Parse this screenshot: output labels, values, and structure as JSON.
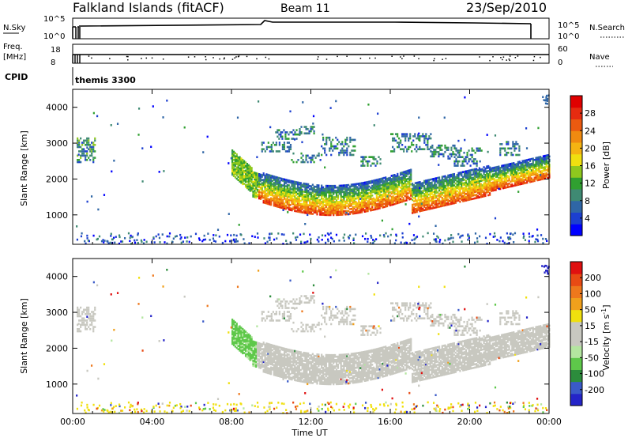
{
  "header": {
    "station": "Falkland Islands (fitACF)",
    "beam": "Beam 11",
    "date": "23/Sep/2010"
  },
  "strip_panels": {
    "nsky": {
      "left_label": "N.Sky",
      "left_ticks": [
        "10^5",
        "10^0"
      ],
      "right_ticks": [
        "10^5",
        "10^0"
      ],
      "right_label": "N.Search"
    },
    "freq": {
      "left_label_1": "Freq.",
      "left_label_2": "[MHz]",
      "left_ticks": [
        "18",
        "8"
      ],
      "right_ticks": [
        "60",
        "0"
      ],
      "right_label": "Nave"
    },
    "cpid": {
      "label": "CPID",
      "value": "themis 3300"
    }
  },
  "x_axis": {
    "title": "Time UT",
    "ticks": [
      "00:00",
      "04:00",
      "08:00",
      "12:00",
      "16:00",
      "20:00",
      "00:00"
    ]
  },
  "chart_data": [
    {
      "type": "heatmap",
      "variable": "Power",
      "ylabel": "Slant Range [km]",
      "y_ticks": [
        1000,
        2000,
        3000,
        4000
      ],
      "ylim": [
        180,
        4500
      ],
      "xlim_hours": [
        0,
        24
      ],
      "colorbar": {
        "label": "Power [dB]",
        "ticks": [
          "28",
          "24",
          "20",
          "16",
          "12",
          "8",
          "4"
        ],
        "colors": [
          "#0000ff",
          "#1c3fd0",
          "#2f66a6",
          "#3f8a73",
          "#30a030",
          "#8fc81e",
          "#f0e010",
          "#f5b412",
          "#f08a10",
          "#eb5a10",
          "#e62b10",
          "#e00000"
        ]
      },
      "features": [
        {
          "name": "main backscatter band",
          "t_hours": [
            8.0,
            24.0
          ],
          "range_km": [
            1200,
            2800
          ],
          "peak_power_db": 28
        },
        {
          "name": "upper scatter patches",
          "t_hours": [
            9.3,
            22.5
          ],
          "range_km": [
            2300,
            3400
          ],
          "peak_power_db": 10
        },
        {
          "name": "early patch",
          "t_hours": [
            0.2,
            1.1
          ],
          "range_km": [
            2500,
            3200
          ],
          "peak_power_db": 10
        },
        {
          "name": "ground/near range speckle",
          "t_hours": [
            0.0,
            24.0
          ],
          "range_km": [
            200,
            500
          ],
          "peak_power_db": 6
        }
      ]
    },
    {
      "type": "heatmap",
      "variable": "Velocity",
      "ylabel": "Slant Range [km]",
      "y_ticks": [
        1000,
        2000,
        3000,
        4000
      ],
      "ylim": [
        180,
        4500
      ],
      "xlim_hours": [
        0,
        24
      ],
      "colorbar": {
        "label": "Velocity [m s^-1]",
        "ticks": [
          "200",
          "100",
          "50",
          "15",
          "-15",
          "-50",
          "-100",
          "-200"
        ],
        "colors": [
          "#2424c8",
          "#3a5ac8",
          "#2c8c3c",
          "#5ec84a",
          "#b4e6a0",
          "#c8c8c0",
          "#c8c8c0",
          "#f0e00e",
          "#f0a01c",
          "#ee781c",
          "#e84a14",
          "#e01010"
        ]
      },
      "features": [
        {
          "name": "main band (near-zero velocity)",
          "t_hours": [
            9.0,
            24.0
          ],
          "range_km": [
            1300,
            2900
          ],
          "velocity_ms": 0
        },
        {
          "name": "leading edge",
          "t_hours": [
            8.0,
            9.2
          ],
          "range_km": [
            1700,
            2900
          ],
          "velocity_ms": 40
        },
        {
          "name": "upper patches",
          "t_hours": [
            9.3,
            22.5
          ],
          "range_km": [
            2300,
            3400
          ],
          "velocity_ms": 0
        },
        {
          "name": "near range speckle",
          "t_hours": [
            0.0,
            24.0
          ],
          "range_km": [
            200,
            500
          ],
          "velocity_ms": -40
        }
      ]
    }
  ]
}
